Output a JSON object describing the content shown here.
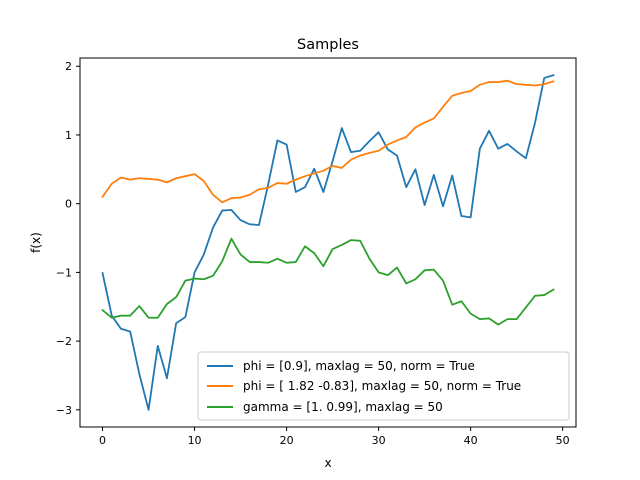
{
  "chart_data": {
    "type": "line",
    "title": "Samples",
    "xlabel": "x",
    "ylabel": "f(x)",
    "xlim": [
      -2.45,
      51.45
    ],
    "ylim": [
      -3.25,
      2.12
    ],
    "xticks": [
      0,
      10,
      20,
      30,
      40,
      50
    ],
    "yticks": [
      -3,
      -2,
      -1,
      0,
      1,
      2
    ],
    "grid": false,
    "legend_position": "lower-right",
    "x": [
      0,
      1,
      2,
      3,
      4,
      5,
      6,
      7,
      8,
      9,
      10,
      11,
      12,
      13,
      14,
      15,
      16,
      17,
      18,
      19,
      20,
      21,
      22,
      23,
      24,
      25,
      26,
      27,
      28,
      29,
      30,
      31,
      32,
      33,
      34,
      35,
      36,
      37,
      38,
      39,
      40,
      41,
      42,
      43,
      44,
      45,
      46,
      47,
      48,
      49
    ],
    "series": [
      {
        "name": "phi = [0.9], maxlag = 50, norm = True",
        "color": "#1f77b4",
        "values": [
          -1.01,
          -1.63,
          -1.82,
          -1.86,
          -2.48,
          -3.0,
          -2.07,
          -2.54,
          -1.74,
          -1.65,
          -1.0,
          -0.74,
          -0.35,
          -0.1,
          -0.09,
          -0.24,
          -0.3,
          -0.31,
          0.28,
          0.92,
          0.86,
          0.17,
          0.24,
          0.51,
          0.17,
          0.62,
          1.1,
          0.75,
          0.77,
          0.91,
          1.04,
          0.79,
          0.7,
          0.24,
          0.5,
          -0.02,
          0.42,
          -0.04,
          0.41,
          -0.18,
          -0.2,
          0.8,
          1.06,
          0.8,
          0.87,
          0.76,
          0.66,
          1.18,
          1.83,
          1.87
        ]
      },
      {
        "name": "phi = [ 1.82 -0.83], maxlag = 50, norm = True",
        "color": "#ff7f0e",
        "values": [
          0.1,
          0.29,
          0.38,
          0.35,
          0.37,
          0.36,
          0.35,
          0.31,
          0.37,
          0.4,
          0.43,
          0.33,
          0.13,
          0.02,
          0.08,
          0.09,
          0.13,
          0.21,
          0.23,
          0.3,
          0.29,
          0.35,
          0.4,
          0.44,
          0.48,
          0.55,
          0.52,
          0.64,
          0.7,
          0.74,
          0.77,
          0.86,
          0.92,
          0.97,
          1.11,
          1.18,
          1.24,
          1.41,
          1.57,
          1.61,
          1.64,
          1.73,
          1.77,
          1.77,
          1.79,
          1.74,
          1.73,
          1.72,
          1.74,
          1.78
        ]
      },
      {
        "name": "gamma = [1.   0.99], maxlag = 50",
        "color": "#2ca02c",
        "values": [
          -1.55,
          -1.66,
          -1.63,
          -1.63,
          -1.49,
          -1.66,
          -1.66,
          -1.46,
          -1.36,
          -1.12,
          -1.09,
          -1.1,
          -1.05,
          -0.84,
          -0.51,
          -0.74,
          -0.85,
          -0.85,
          -0.86,
          -0.8,
          -0.86,
          -0.85,
          -0.62,
          -0.72,
          -0.91,
          -0.66,
          -0.6,
          -0.53,
          -0.54,
          -0.8,
          -1.0,
          -1.04,
          -0.93,
          -1.16,
          -1.1,
          -0.97,
          -0.96,
          -1.12,
          -1.47,
          -1.42,
          -1.6,
          -1.68,
          -1.67,
          -1.76,
          -1.68,
          -1.68,
          -1.51,
          -1.34,
          -1.33,
          -1.25
        ]
      }
    ]
  }
}
